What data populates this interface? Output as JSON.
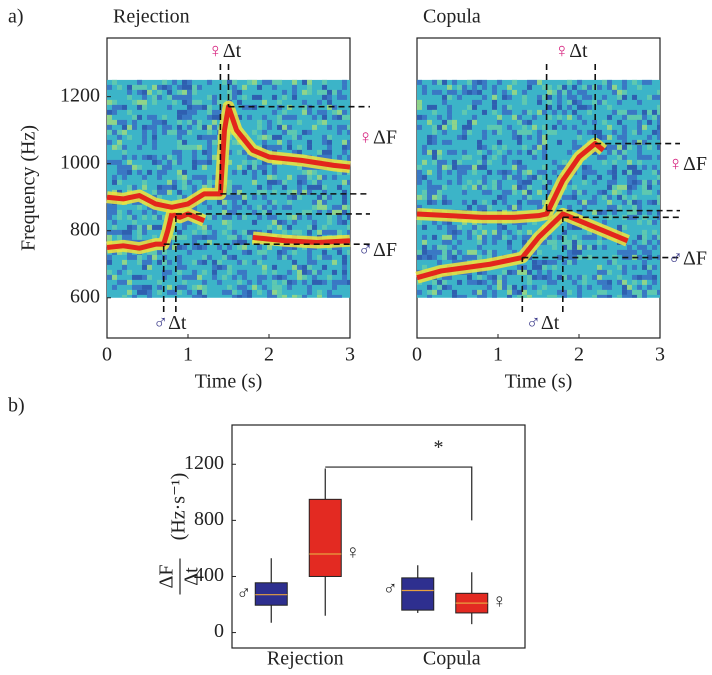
{
  "chart_data": [
    {
      "type": "spectrogram",
      "panel_label": "a)",
      "title": "Rejection",
      "ylabel": "Frequency (Hz)",
      "xlabel": "Time (s)",
      "xlim": [
        0,
        3
      ],
      "xticks": [
        0,
        1,
        2,
        3
      ],
      "ylim": [
        480,
        1375
      ],
      "yticks": [
        600,
        800,
        1000,
        1200
      ],
      "freq_range": [
        600,
        1250
      ],
      "series": [
        {
          "color": "#e3261c",
          "x": [
            0,
            0.2,
            0.4,
            0.6,
            0.7,
            0.75,
            0.8,
            0.9,
            1.0,
            1.2,
            1.6,
            1.8,
            2.2,
            2.6,
            3.0
          ],
          "values": [
            750,
            755,
            748,
            760,
            760,
            800,
            850,
            840,
            850,
            830,
            null,
            780,
            770,
            765,
            770
          ]
        },
        {
          "color": "#e3261c",
          "x": [
            0,
            0.2,
            0.4,
            0.6,
            0.8,
            1.0,
            1.2,
            1.4,
            1.45,
            1.5,
            1.6,
            1.8,
            2.0,
            2.4,
            2.8,
            3.0
          ],
          "values": [
            900,
            895,
            905,
            880,
            870,
            880,
            910,
            910,
            1100,
            1170,
            1100,
            1040,
            1020,
            1010,
            995,
            990
          ]
        }
      ],
      "markers": [
        {
          "symbol": "♀",
          "symbol_color": "#d6237f",
          "dt_label": "Δt",
          "df_label": "ΔF",
          "side": "top",
          "times": [
            1.4,
            1.5
          ],
          "freqs": [
            910,
            1170
          ]
        },
        {
          "symbol": "♂",
          "symbol_color": "#3b3a8a",
          "dt_label": "Δt",
          "df_label": "ΔF",
          "side": "bottom",
          "times": [
            0.7,
            0.85
          ],
          "freqs": [
            760,
            850
          ]
        }
      ]
    },
    {
      "type": "spectrogram",
      "title": "Copula",
      "xlabel": "Time (s)",
      "xlim": [
        0,
        3
      ],
      "xticks": [
        0,
        1,
        2,
        3
      ],
      "ylim": [
        480,
        1375
      ],
      "freq_range": [
        600,
        1250
      ],
      "series": [
        {
          "color": "#e3261c",
          "x": [
            0,
            0.3,
            0.6,
            0.9,
            1.2,
            1.3,
            1.5,
            1.8,
            2.0,
            2.3,
            2.6
          ],
          "values": [
            660,
            680,
            690,
            700,
            715,
            720,
            780,
            850,
            830,
            800,
            770
          ]
        },
        {
          "color": "#e3261c",
          "x": [
            0,
            0.4,
            0.8,
            1.2,
            1.5,
            1.6,
            1.8,
            2.0,
            2.2,
            2.3
          ],
          "values": [
            850,
            845,
            840,
            840,
            845,
            850,
            950,
            1020,
            1060,
            1040
          ]
        }
      ],
      "markers": [
        {
          "symbol": "♀",
          "symbol_color": "#d6237f",
          "dt_label": "Δt",
          "df_label": "ΔF",
          "side": "top",
          "times": [
            1.6,
            2.2
          ],
          "freqs": [
            860,
            1060
          ]
        },
        {
          "symbol": "♂",
          "symbol_color": "#3b3a8a",
          "dt_label": "Δt",
          "df_label": "ΔF",
          "side": "bottom",
          "times": [
            1.3,
            1.8
          ],
          "freqs": [
            720,
            840
          ]
        }
      ]
    },
    {
      "type": "box",
      "panel_label": "b)",
      "ylabel": {
        "numerator": "ΔF",
        "denominator": "Δt",
        "unit": "(Hz·s⁻¹)"
      },
      "categories": [
        "Rejection",
        "Copula"
      ],
      "ylim": [
        -110,
        1480
      ],
      "yticks": [
        0,
        400,
        800,
        1200
      ],
      "series": [
        {
          "name": "♂",
          "label_color": "#3b3a8a",
          "color": "#2e2f8f",
          "boxes": [
            {
              "min": 70,
              "q1": 195,
              "median": 270,
              "q3": 355,
              "max": 530
            },
            {
              "min": 140,
              "q1": 160,
              "median": 300,
              "q3": 390,
              "max": 480
            }
          ]
        },
        {
          "name": "♀",
          "label_color": "#d6237f",
          "color": "#e32a22",
          "boxes": [
            {
              "min": 120,
              "q1": 400,
              "median": 560,
              "q3": 950,
              "max": 1170
            },
            {
              "min": 60,
              "q1": 140,
              "median": 210,
              "q3": 280,
              "max": 430
            }
          ]
        }
      ],
      "significance": {
        "label": "*",
        "y": 1180,
        "drop_to": 800
      }
    }
  ]
}
